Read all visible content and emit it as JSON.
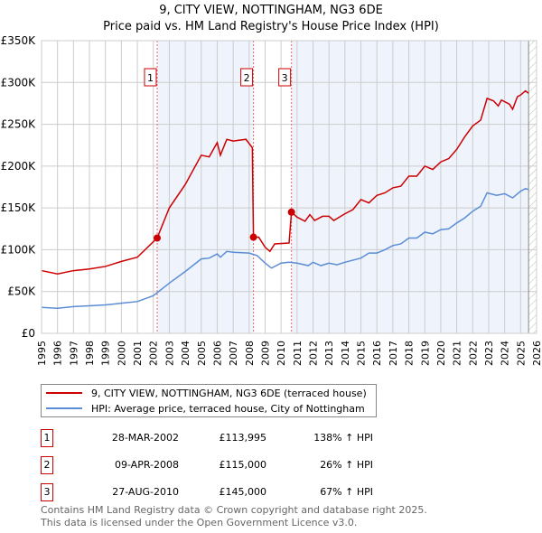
{
  "title": "9, CITY VIEW, NOTTINGHAM, NG3 6DE",
  "subtitle": "Price paid vs. HM Land Registry's House Price Index (HPI)",
  "chart_data": {
    "type": "line",
    "xlim": [
      1995,
      2026
    ],
    "ylim": [
      0,
      350000
    ],
    "yticks": [
      {
        "v": 0,
        "label": "£0"
      },
      {
        "v": 50000,
        "label": "£50K"
      },
      {
        "v": 100000,
        "label": "£100K"
      },
      {
        "v": 150000,
        "label": "£150K"
      },
      {
        "v": 200000,
        "label": "£200K"
      },
      {
        "v": 250000,
        "label": "£250K"
      },
      {
        "v": 300000,
        "label": "£300K"
      },
      {
        "v": 350000,
        "label": "£350K"
      }
    ],
    "xticks": [
      "1995",
      "1996",
      "1997",
      "1998",
      "1999",
      "2000",
      "2001",
      "2002",
      "2003",
      "2004",
      "2005",
      "2006",
      "2007",
      "2008",
      "2009",
      "2010",
      "2011",
      "2012",
      "2013",
      "2014",
      "2015",
      "2016",
      "2017",
      "2018",
      "2019",
      "2020",
      "2021",
      "2022",
      "2023",
      "2024",
      "2025",
      "2026"
    ],
    "series": [
      {
        "name": "9, CITY VIEW, NOTTINGHAM, NG3 6DE (terraced house)",
        "color": "#cc0000",
        "points": [
          [
            1995,
            75000
          ],
          [
            1996,
            71000
          ],
          [
            1997,
            75000
          ],
          [
            1998,
            77000
          ],
          [
            1999,
            80000
          ],
          [
            2000,
            86000
          ],
          [
            2001,
            91000
          ],
          [
            2002.24,
            114000
          ],
          [
            2003,
            150000
          ],
          [
            2004,
            178000
          ],
          [
            2005,
            213000
          ],
          [
            2005.5,
            211000
          ],
          [
            2006,
            228000
          ],
          [
            2006.2,
            213000
          ],
          [
            2006.6,
            232000
          ],
          [
            2007,
            230000
          ],
          [
            2007.8,
            232000
          ],
          [
            2008.2,
            222000
          ],
          [
            2008.27,
            115000
          ],
          [
            2008.6,
            115000
          ],
          [
            2009,
            103000
          ],
          [
            2009.3,
            98000
          ],
          [
            2009.6,
            107000
          ],
          [
            2010.5,
            108000
          ],
          [
            2010.65,
            145000
          ],
          [
            2011,
            139000
          ],
          [
            2011.5,
            134000
          ],
          [
            2011.8,
            142000
          ],
          [
            2012.1,
            135000
          ],
          [
            2012.6,
            140000
          ],
          [
            2013,
            140000
          ],
          [
            2013.3,
            135000
          ],
          [
            2014,
            143000
          ],
          [
            2014.5,
            148000
          ],
          [
            2015,
            160000
          ],
          [
            2015.5,
            156000
          ],
          [
            2016,
            165000
          ],
          [
            2016.5,
            168000
          ],
          [
            2017,
            174000
          ],
          [
            2017.5,
            176000
          ],
          [
            2018,
            188000
          ],
          [
            2018.5,
            188000
          ],
          [
            2019,
            200000
          ],
          [
            2019.5,
            196000
          ],
          [
            2020,
            205000
          ],
          [
            2020.5,
            209000
          ],
          [
            2021,
            220000
          ],
          [
            2021.5,
            235000
          ],
          [
            2022,
            248000
          ],
          [
            2022.5,
            255000
          ],
          [
            2022.9,
            281000
          ],
          [
            2023.3,
            278000
          ],
          [
            2023.6,
            272000
          ],
          [
            2023.8,
            279000
          ],
          [
            2024.3,
            274000
          ],
          [
            2024.5,
            268000
          ],
          [
            2024.8,
            283000
          ],
          [
            2025,
            285000
          ],
          [
            2025.3,
            290000
          ],
          [
            2025.5,
            287000
          ]
        ]
      },
      {
        "name": "HPI: Average price, terraced house, City of Nottingham",
        "color": "#5b8dd6",
        "points": [
          [
            1995,
            31000
          ],
          [
            1996,
            30000
          ],
          [
            1997,
            32000
          ],
          [
            1998,
            33000
          ],
          [
            1999,
            34000
          ],
          [
            2000,
            36000
          ],
          [
            2001,
            38000
          ],
          [
            2002,
            45000
          ],
          [
            2003,
            60000
          ],
          [
            2004,
            74000
          ],
          [
            2005,
            89000
          ],
          [
            2005.5,
            90000
          ],
          [
            2006,
            95000
          ],
          [
            2006.2,
            91000
          ],
          [
            2006.6,
            98000
          ],
          [
            2007,
            97000
          ],
          [
            2008,
            96000
          ],
          [
            2008.5,
            93000
          ],
          [
            2009,
            84000
          ],
          [
            2009.4,
            78000
          ],
          [
            2010,
            84000
          ],
          [
            2010.5,
            85000
          ],
          [
            2011,
            84000
          ],
          [
            2011.7,
            81000
          ],
          [
            2012,
            85000
          ],
          [
            2012.5,
            81000
          ],
          [
            2013,
            84000
          ],
          [
            2013.5,
            82000
          ],
          [
            2014,
            85000
          ],
          [
            2015,
            90000
          ],
          [
            2015.5,
            96000
          ],
          [
            2016,
            96000
          ],
          [
            2016.5,
            100000
          ],
          [
            2017,
            105000
          ],
          [
            2017.5,
            107000
          ],
          [
            2018,
            114000
          ],
          [
            2018.5,
            114000
          ],
          [
            2019,
            121000
          ],
          [
            2019.5,
            119000
          ],
          [
            2020,
            124000
          ],
          [
            2020.5,
            125000
          ],
          [
            2021,
            132000
          ],
          [
            2021.5,
            138000
          ],
          [
            2022,
            146000
          ],
          [
            2022.5,
            152000
          ],
          [
            2022.9,
            168000
          ],
          [
            2023.5,
            165000
          ],
          [
            2024,
            167000
          ],
          [
            2024.5,
            162000
          ],
          [
            2025,
            170000
          ],
          [
            2025.3,
            173000
          ],
          [
            2025.5,
            172000
          ]
        ]
      }
    ],
    "sales": [
      {
        "label": "1",
        "x": 2002.24,
        "y": 113995
      },
      {
        "label": "2",
        "x": 2008.27,
        "y": 115000
      },
      {
        "label": "3",
        "x": 2010.65,
        "y": 145000
      }
    ],
    "shaded": [
      [
        2002.24,
        2008.27
      ],
      [
        2010.65,
        2025.5
      ]
    ],
    "hatch_from": 2025.5
  },
  "legend": [
    "9, CITY VIEW, NOTTINGHAM, NG3 6DE (terraced house)",
    "HPI: Average price, terraced house, City of Nottingham"
  ],
  "table": [
    {
      "num": "1",
      "date": "28-MAR-2002",
      "price": "£113,995",
      "hpi": "138% ↑ HPI"
    },
    {
      "num": "2",
      "date": "09-APR-2008",
      "price": "£115,000",
      "hpi": "26% ↑ HPI"
    },
    {
      "num": "3",
      "date": "27-AUG-2010",
      "price": "£145,000",
      "hpi": "67% ↑ HPI"
    }
  ],
  "footer": [
    "Contains HM Land Registry data © Crown copyright and database right 2025.",
    "This data is licensed under the Open Government Licence v3.0."
  ]
}
